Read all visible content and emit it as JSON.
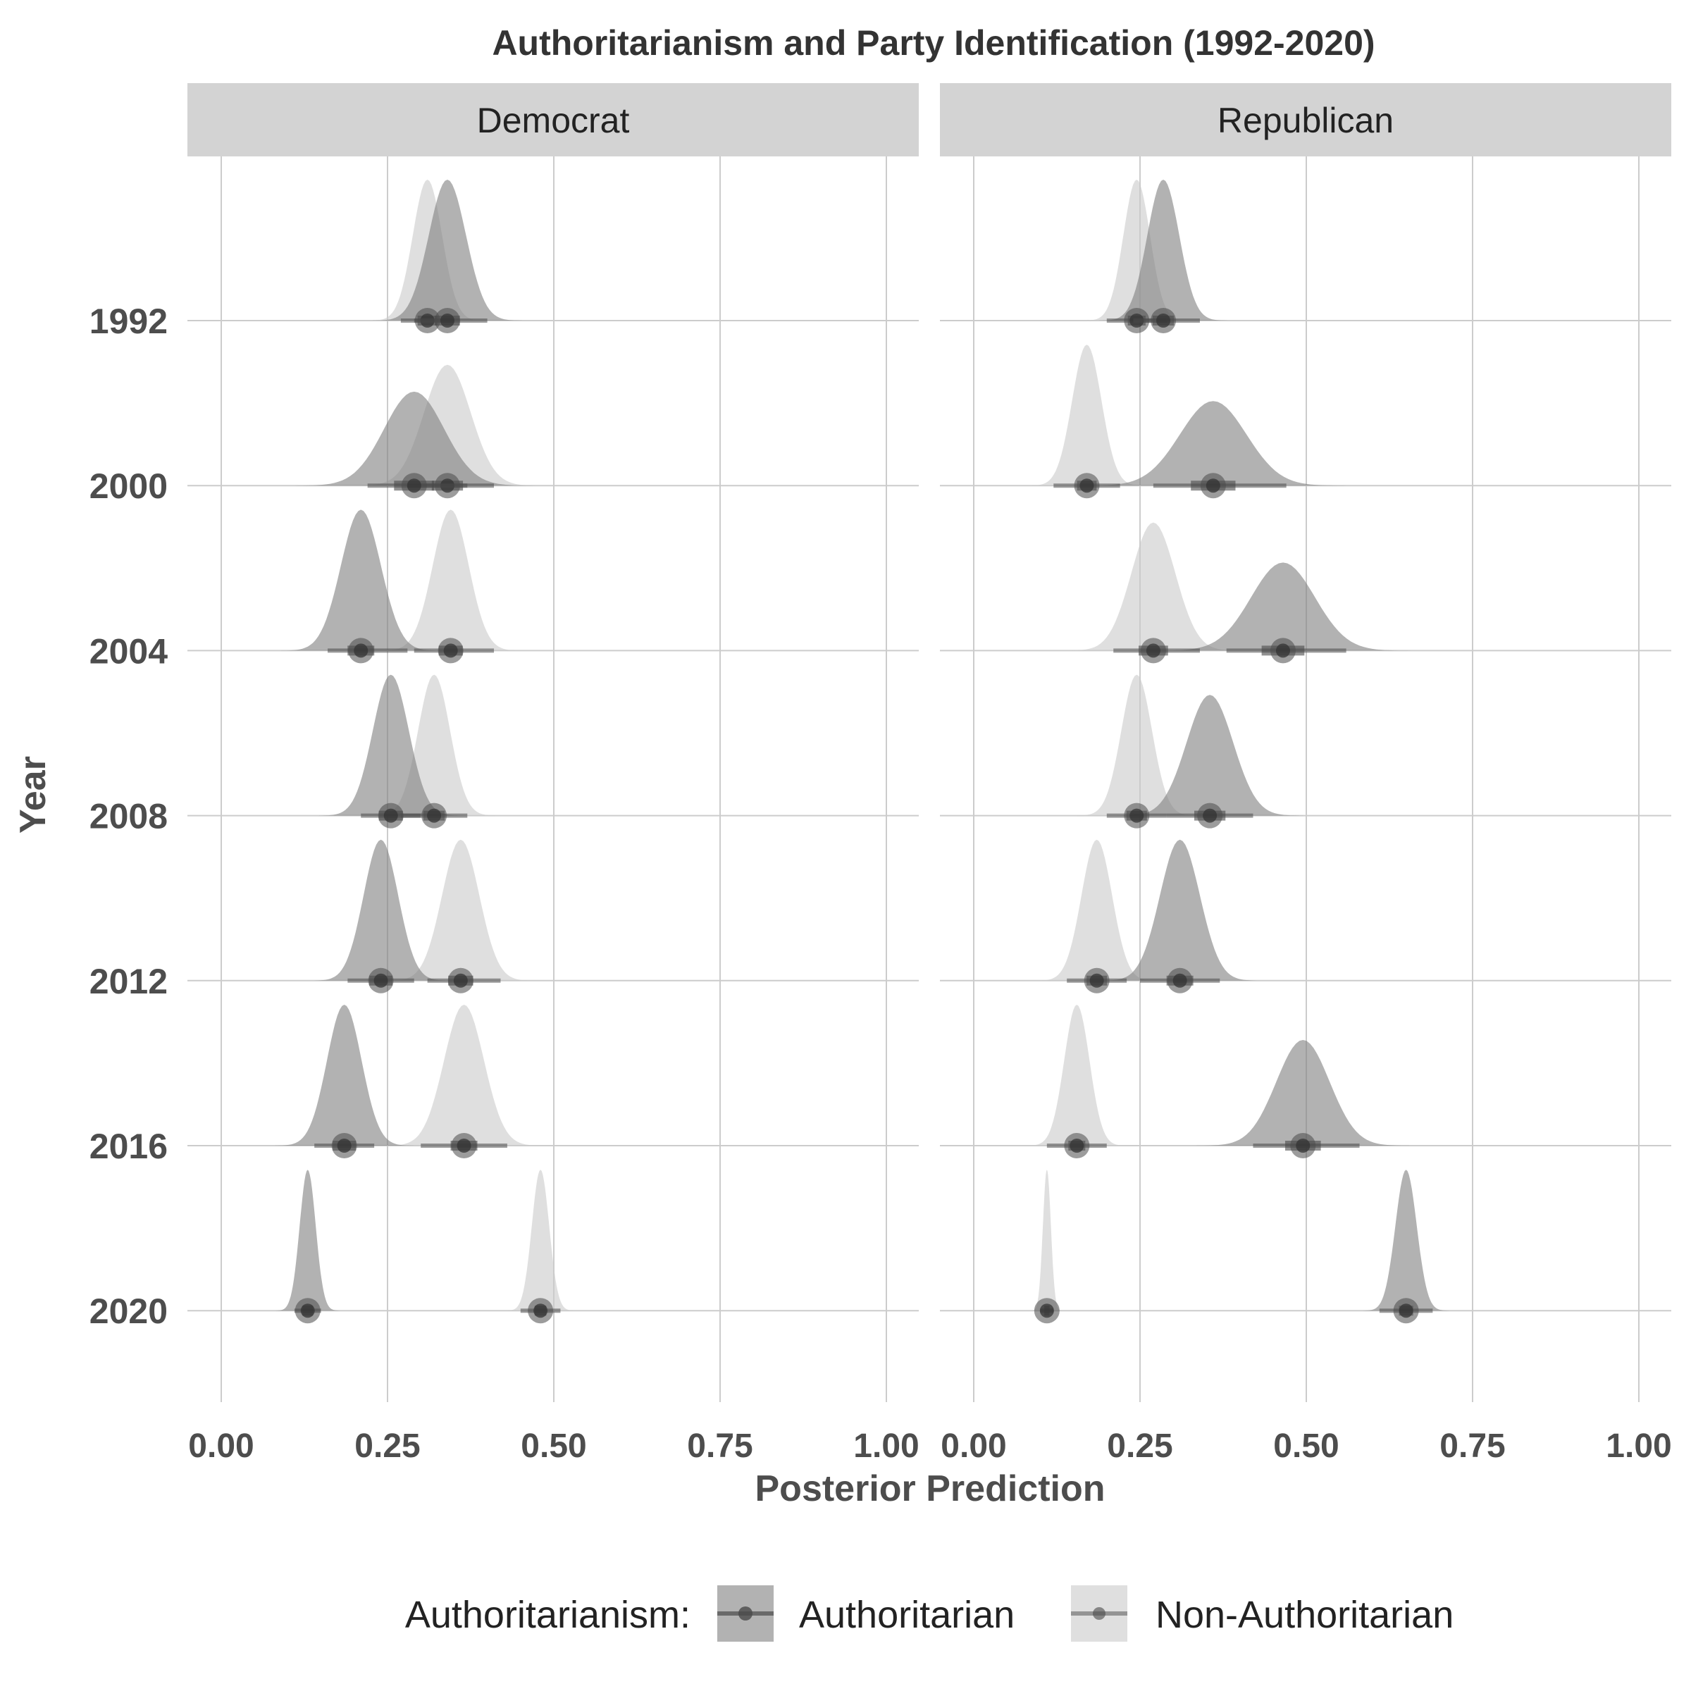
{
  "chart_data": {
    "type": "density-ridge",
    "title": "Authoritarianism and Party Identification (1992-2020)",
    "xlabel": "Posterior Prediction",
    "ylabel": "Year",
    "xlim": [
      0,
      1
    ],
    "x_ticks": [
      "0.00",
      "0.25",
      "0.50",
      "0.75",
      "1.00"
    ],
    "x_tick_values": [
      0,
      0.25,
      0.5,
      0.75,
      1.0
    ],
    "years": [
      "1992",
      "2000",
      "2004",
      "2008",
      "2012",
      "2016",
      "2020"
    ],
    "facets": [
      "Democrat",
      "Republican"
    ],
    "grid": true,
    "legend": {
      "title": "Authoritarianism:",
      "position": "bottom",
      "entries": [
        "Authoritarian",
        "Non-Authoritarian"
      ]
    },
    "colors": {
      "Authoritarian": "#7f7f7f",
      "Non-Authoritarian": "#c9c9c9",
      "strip": "#d3d3d3",
      "grid": "#cccccc",
      "point": "#4a4a4a"
    },
    "series": [
      {
        "facet": "Democrat",
        "group": "Authoritarian",
        "points": [
          {
            "year": "1992",
            "median": 0.34,
            "sd": 0.028,
            "lo": 0.29,
            "hi": 0.4
          },
          {
            "year": "2000",
            "median": 0.29,
            "sd": 0.045,
            "lo": 0.22,
            "hi": 0.37
          },
          {
            "year": "2004",
            "median": 0.21,
            "sd": 0.03,
            "lo": 0.16,
            "hi": 0.28
          },
          {
            "year": "2008",
            "median": 0.255,
            "sd": 0.027,
            "lo": 0.21,
            "hi": 0.3
          },
          {
            "year": "2012",
            "median": 0.24,
            "sd": 0.026,
            "lo": 0.19,
            "hi": 0.29
          },
          {
            "year": "2016",
            "median": 0.185,
            "sd": 0.026,
            "lo": 0.14,
            "hi": 0.23
          },
          {
            "year": "2020",
            "median": 0.13,
            "sd": 0.012,
            "lo": 0.11,
            "hi": 0.15
          }
        ]
      },
      {
        "facet": "Democrat",
        "group": "Non-Authoritarian",
        "points": [
          {
            "year": "1992",
            "median": 0.31,
            "sd": 0.022,
            "lo": 0.27,
            "hi": 0.35
          },
          {
            "year": "2000",
            "median": 0.34,
            "sd": 0.035,
            "lo": 0.28,
            "hi": 0.41
          },
          {
            "year": "2004",
            "median": 0.345,
            "sd": 0.027,
            "lo": 0.29,
            "hi": 0.41
          },
          {
            "year": "2008",
            "median": 0.32,
            "sd": 0.024,
            "lo": 0.27,
            "hi": 0.37
          },
          {
            "year": "2012",
            "median": 0.36,
            "sd": 0.028,
            "lo": 0.31,
            "hi": 0.42
          },
          {
            "year": "2016",
            "median": 0.365,
            "sd": 0.03,
            "lo": 0.3,
            "hi": 0.43
          },
          {
            "year": "2020",
            "median": 0.48,
            "sd": 0.013,
            "lo": 0.45,
            "hi": 0.51
          }
        ]
      },
      {
        "facet": "Republican",
        "group": "Authoritarian",
        "points": [
          {
            "year": "1992",
            "median": 0.285,
            "sd": 0.024,
            "lo": 0.24,
            "hi": 0.34
          },
          {
            "year": "2000",
            "median": 0.36,
            "sd": 0.05,
            "lo": 0.27,
            "hi": 0.47
          },
          {
            "year": "2004",
            "median": 0.465,
            "sd": 0.048,
            "lo": 0.38,
            "hi": 0.56
          },
          {
            "year": "2008",
            "median": 0.355,
            "sd": 0.035,
            "lo": 0.29,
            "hi": 0.42
          },
          {
            "year": "2012",
            "median": 0.31,
            "sd": 0.03,
            "lo": 0.25,
            "hi": 0.37
          },
          {
            "year": "2016",
            "median": 0.495,
            "sd": 0.04,
            "lo": 0.42,
            "hi": 0.58
          },
          {
            "year": "2020",
            "median": 0.65,
            "sd": 0.016,
            "lo": 0.61,
            "hi": 0.69
          }
        ]
      },
      {
        "facet": "Republican",
        "group": "Non-Authoritarian",
        "points": [
          {
            "year": "1992",
            "median": 0.245,
            "sd": 0.02,
            "lo": 0.2,
            "hi": 0.29
          },
          {
            "year": "2000",
            "median": 0.17,
            "sd": 0.022,
            "lo": 0.12,
            "hi": 0.22
          },
          {
            "year": "2004",
            "median": 0.27,
            "sd": 0.033,
            "lo": 0.21,
            "hi": 0.34
          },
          {
            "year": "2008",
            "median": 0.245,
            "sd": 0.023,
            "lo": 0.2,
            "hi": 0.29
          },
          {
            "year": "2012",
            "median": 0.185,
            "sd": 0.023,
            "lo": 0.14,
            "hi": 0.23
          },
          {
            "year": "2016",
            "median": 0.155,
            "sd": 0.019,
            "lo": 0.11,
            "hi": 0.2
          },
          {
            "year": "2020",
            "median": 0.11,
            "sd": 0.006,
            "lo": 0.1,
            "hi": 0.12
          }
        ]
      }
    ]
  }
}
